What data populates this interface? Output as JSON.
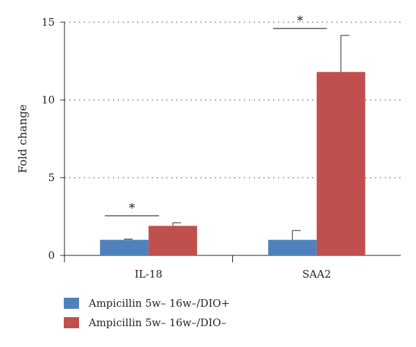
{
  "chart_data": {
    "type": "bar",
    "categories": [
      "IL-18",
      "SAA2"
    ],
    "ylabel": "Fold change",
    "ylim": [
      0,
      15
    ],
    "yticks": [
      0,
      5,
      10,
      15
    ],
    "grid": true,
    "legend_position": "bottom-left",
    "series": [
      {
        "name": "Ampicillin 5w– 16w–/DIO+",
        "color": "#4f81bd",
        "values": [
          1.0,
          1.0
        ],
        "errors": [
          0.05,
          0.6
        ]
      },
      {
        "name": "Ampicillin 5w– 16w–/DIO–",
        "color": "#c0504d",
        "values": [
          1.9,
          11.8
        ],
        "errors": [
          0.2,
          2.35
        ]
      }
    ],
    "annotations": [
      {
        "category": "IL-18",
        "label": "*"
      },
      {
        "category": "SAA2",
        "label": "*"
      }
    ]
  }
}
